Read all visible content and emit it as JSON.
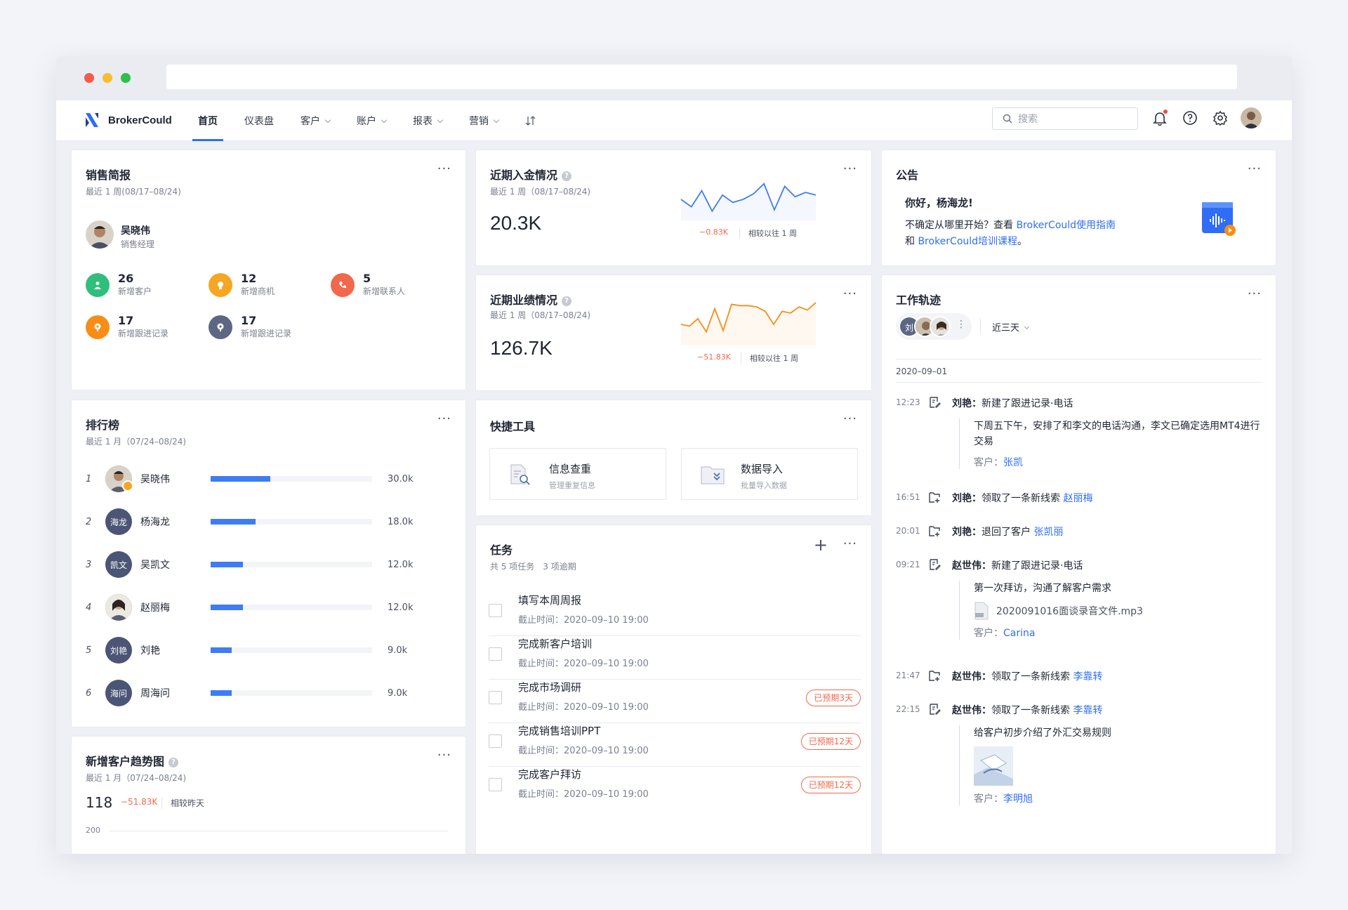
{
  "brand": {
    "name": "BrokerCould",
    "accent": "#2f6df6"
  },
  "nav": {
    "items": [
      {
        "label": "首页",
        "dropdown": false,
        "active": true
      },
      {
        "label": "仪表盘",
        "dropdown": false
      },
      {
        "label": "客户",
        "dropdown": true
      },
      {
        "label": "账户",
        "dropdown": true
      },
      {
        "label": "报表",
        "dropdown": true
      },
      {
        "label": "营销",
        "dropdown": true
      }
    ],
    "search_placeholder": "搜索"
  },
  "sales": {
    "title": "销售简报",
    "subtitle": "最近 1 周(08/17–08/24)",
    "person_name": "吴晓伟",
    "person_role": "销售经理",
    "stats": [
      {
        "value": "26",
        "label": "新增客户",
        "color": "#2fbf7a",
        "icon": "user-icon"
      },
      {
        "value": "12",
        "label": "新增商机",
        "color": "#f5a623",
        "icon": "bulb-icon"
      },
      {
        "value": "5",
        "label": "新增联系人",
        "color": "#f2684b",
        "icon": "phone-icon"
      },
      {
        "value": "17",
        "label": "新增跟进记录",
        "color": "#f88d16",
        "icon": "pin-icon"
      },
      {
        "value": "17",
        "label": "新增跟进记录",
        "color": "#5d6784",
        "icon": "pin-icon"
      }
    ]
  },
  "deposit": {
    "title": "近期入金情况",
    "subtitle": "最近 1 周（08/17–08/24)",
    "value": "20.3K",
    "delta": "−0.83K",
    "compare": "相较以往 1 周",
    "spark": [
      0.42,
      0.25,
      0.62,
      0.15,
      0.52,
      0.35,
      0.42,
      0.55,
      0.78,
      0.18,
      0.72,
      0.48,
      0.58,
      0.52
    ],
    "color": "#3d7cf4"
  },
  "performance": {
    "title": "近期业绩情况",
    "subtitle": "最近 1 周（08/17–08/24)",
    "value": "126.7K",
    "delta": "−51.83K",
    "compare": "相较以往 1 周",
    "spark": [
      0.42,
      0.38,
      0.55,
      0.25,
      0.78,
      0.28,
      0.88,
      0.85,
      0.85,
      0.82,
      0.72,
      0.42,
      0.72,
      0.68,
      0.82,
      0.75,
      0.92
    ],
    "color": "#f88d16"
  },
  "notice": {
    "title": "公告",
    "greeting": "你好，杨海龙!",
    "line1_pre": "不确定从哪里开始？查看 ",
    "line1_link": "BrokerCould使用指南",
    "line2_pre": "和 ",
    "line2_link": "BrokerCould培训课程",
    "line2_post": "。"
  },
  "ranking": {
    "title": "排行榜",
    "subtitle": "最近 1 月（07/24–08/24)",
    "rows": [
      {
        "rank": "1",
        "initials": "",
        "name": "吴晓伟",
        "pct": 0.37,
        "value": "30.0k",
        "photo": true
      },
      {
        "rank": "2",
        "initials": "海龙",
        "name": "杨海龙",
        "pct": 0.28,
        "value": "18.0k"
      },
      {
        "rank": "3",
        "initials": "凯文",
        "name": "吴凯文",
        "pct": 0.2,
        "value": "12.0k"
      },
      {
        "rank": "4",
        "initials": "",
        "name": "赵丽梅",
        "pct": 0.2,
        "value": "12.0k",
        "photo": true
      },
      {
        "rank": "5",
        "initials": "刘艳",
        "name": "刘艳",
        "pct": 0.13,
        "value": "9.0k"
      },
      {
        "rank": "6",
        "initials": "海问",
        "name": "周海问",
        "pct": 0.13,
        "value": "9.0k"
      }
    ]
  },
  "quick_tools": {
    "title": "快捷工具",
    "items": [
      {
        "title": "信息查重",
        "sub": "管理重复信息"
      },
      {
        "title": "数据导入",
        "sub": "批量导入数据"
      }
    ]
  },
  "tasks": {
    "title": "任务",
    "summary": "共 5 项任务　3 项逾期",
    "items": [
      {
        "title": "填写本周周报",
        "deadline": "截止时间：2020–09–10 19:00",
        "overdue": ""
      },
      {
        "title": "完成新客户培训",
        "deadline": "截止时间：2020–09–10 19:00",
        "overdue": ""
      },
      {
        "title": "完成市场调研",
        "deadline": "截止时间：2020–09–10 19:00",
        "overdue": "已预期3天"
      },
      {
        "title": "完成销售培训PPT",
        "deadline": "截止时间：2020–09–10 19:00",
        "overdue": "已预期12天"
      },
      {
        "title": "完成客户拜访",
        "deadline": "截止时间：2020–09–10 19:00",
        "overdue": "已预期12天"
      }
    ]
  },
  "trend": {
    "title": "新增客户趋势图",
    "subtitle": "最近 1 月（07/24–08/24)",
    "value": "118",
    "delta": "−51.83K",
    "compare": "相较昨天",
    "y_tick": "200"
  },
  "worklog": {
    "title": "工作轨迹",
    "avatar_label": "刘",
    "filter": "近三天",
    "date": "2020–09–01",
    "entries": [
      {
        "time": "12:23",
        "icon": "edit-icon",
        "who": "刘艳：",
        "action": "新建了跟进记录·电话",
        "link": "",
        "detail": "下周五下午，安排了和李文的电话沟通，李文已确定选用MT4进行交易",
        "customer_label": "客户：",
        "customer": "张凯"
      },
      {
        "time": "16:51",
        "icon": "folder-add-icon",
        "who": "刘艳：",
        "action": "领取了一条新线索 ",
        "link": "赵丽梅"
      },
      {
        "time": "20:01",
        "icon": "folder-add-icon",
        "who": "刘艳：",
        "action": "退回了客户 ",
        "link": "张凯丽"
      },
      {
        "time": "09:21",
        "icon": "edit-icon",
        "who": "赵世伟：",
        "action": "新建了跟进记录·电话",
        "link": "",
        "detail": "第一次拜访，沟通了解客户需求",
        "file": "2020091016面谈录音文件.mp3",
        "customer_label": "客户：",
        "customer": "Carina"
      },
      {
        "time": "21:47",
        "icon": "folder-add-icon",
        "who": "赵世伟：",
        "action": "领取了一条新线索 ",
        "link": "李靠转"
      },
      {
        "time": "22:15",
        "icon": "edit-icon",
        "who": "赵世伟：",
        "action": "领取了一条新线索 ",
        "link": "李靠转",
        "detail": "给客户初步介绍了外汇交易规则",
        "customer_label": "客户：",
        "customer": "李明旭"
      }
    ]
  }
}
